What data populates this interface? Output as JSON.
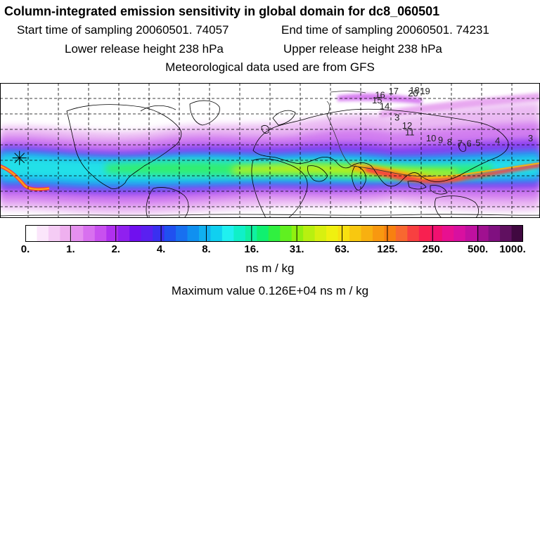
{
  "header": {
    "title": "Column-integrated emission sensitivity in global domain for dc8_060501",
    "start_time": "Start time of sampling 20060501. 74057",
    "end_time": "End time of sampling 20060501. 74231",
    "lower_release": "Lower release height  238 hPa",
    "upper_release": "Upper release height  238 hPa",
    "met_data": "Meteorological data used are from GFS"
  },
  "map": {
    "trajectory_labels": [
      {
        "text": "17",
        "lon": 79,
        "lat": 75
      },
      {
        "text": "18",
        "lon": 93,
        "lat": 76
      },
      {
        "text": "19",
        "lon": 100,
        "lat": 75
      },
      {
        "text": "20",
        "lon": 92,
        "lat": 72
      },
      {
        "text": "16",
        "lon": 70,
        "lat": 70
      },
      {
        "text": "15",
        "lon": 68,
        "lat": 63
      },
      {
        "text": "14",
        "lon": 73,
        "lat": 55
      },
      {
        "text": "3",
        "lon": 83,
        "lat": 40
      },
      {
        "text": "12",
        "lon": 88,
        "lat": 29
      },
      {
        "text": "11",
        "lon": 90,
        "lat": 20
      },
      {
        "text": "10",
        "lon": 104,
        "lat": 12
      },
      {
        "text": "9",
        "lon": 112,
        "lat": 10
      },
      {
        "text": "8",
        "lon": 118,
        "lat": 7
      },
      {
        "text": "7",
        "lon": 125,
        "lat": 5
      },
      {
        "text": "6",
        "lon": 131,
        "lat": 5
      },
      {
        "text": "5",
        "lon": 137,
        "lat": 6
      },
      {
        "text": "4",
        "lon": 150,
        "lat": 9
      },
      {
        "text": "3",
        "lon": 172,
        "lat": 12
      }
    ],
    "release_point": {
      "lon": -167,
      "lat": -10
    }
  },
  "colorbar": {
    "tick_labels": [
      "0.",
      "1.",
      "2.",
      "4.",
      "8.",
      "16.",
      "31.",
      "63.",
      "125.",
      "250.",
      "500.",
      "1000."
    ],
    "colors": [
      "#ffffff",
      "#fbe6fb",
      "#f5ccf5",
      "#efb0ef",
      "#e590ef",
      "#d870ef",
      "#c850ef",
      "#b030ef",
      "#9020ef",
      "#7010ef",
      "#5a20f0",
      "#3a30f0",
      "#2050f0",
      "#1870f0",
      "#1090f0",
      "#10b0f0",
      "#10d0f0",
      "#20f0f0",
      "#10f0c8",
      "#10f0a0",
      "#10f070",
      "#30f040",
      "#60f020",
      "#90f010",
      "#b8f010",
      "#d8f010",
      "#f0f010",
      "#f8e010",
      "#f8c810",
      "#f8b010",
      "#f89810",
      "#f88010",
      "#f86830",
      "#f84040",
      "#f82050",
      "#f01070",
      "#e81090",
      "#d810a0",
      "#c010a0",
      "#a01090",
      "#801080",
      "#601060",
      "#400840"
    ]
  },
  "units": "ns m / kg",
  "max_value": "Maximum value  0.126E+04 ns m / kg"
}
